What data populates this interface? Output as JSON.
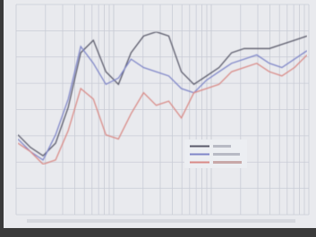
{
  "chart_data": {
    "type": "line",
    "series": [
      {
        "color": "#5a5a6a",
        "values": [
          38,
          32,
          28,
          34,
          51,
          77,
          83,
          68,
          62,
          77,
          85,
          87,
          85,
          68,
          62,
          66,
          70,
          77,
          79,
          79,
          79,
          81,
          83,
          85
        ]
      },
      {
        "color": "#7f86c8",
        "values": [
          36,
          30,
          26,
          38,
          55,
          80,
          72,
          62,
          65,
          74,
          70,
          68,
          66,
          60,
          58,
          64,
          68,
          72,
          74,
          76,
          72,
          70,
          74,
          78
        ]
      },
      {
        "color": "#d98a86",
        "values": [
          34,
          30,
          24,
          26,
          40,
          60,
          55,
          38,
          36,
          48,
          58,
          52,
          54,
          46,
          58,
          60,
          62,
          68,
          70,
          72,
          68,
          66,
          70,
          76
        ]
      }
    ],
    "ylim": [
      0,
      100
    ],
    "grid": true
  }
}
